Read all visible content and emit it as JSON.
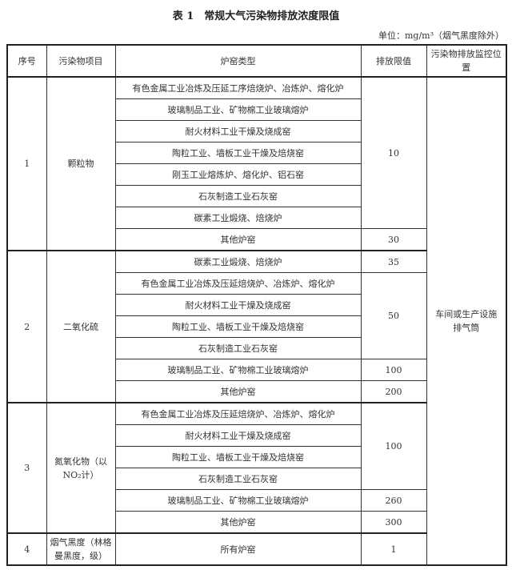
{
  "title": "表 1　常规大气污染物排放浓度限值",
  "unit": "单位：mg/m³（烟气黑度除外）",
  "headers": [
    "序号",
    "污染物项目",
    "炉窑类型",
    "排放限值",
    "污染物排放监控位置"
  ],
  "monitor_location": "车间或生产设施排气筒",
  "sections": [
    {
      "no": "1",
      "pollutant": "颗粒物",
      "rows": [
        {
          "furnace": "有色金属工业冶炼及压延工序焙烧炉、冶炼炉、熔化炉",
          "limit": "10",
          "span": 7
        },
        {
          "furnace": "玻璃制品工业、矿物棉工业玻璃熔炉"
        },
        {
          "furnace": "耐火材料工业干燥及烧成窑"
        },
        {
          "furnace": "陶粒工业、墙板工业干燥及焙烧窑"
        },
        {
          "furnace": "刚玉工业熔炼炉、熔化炉、铝石窑"
        },
        {
          "furnace": "石灰制造工业石灰窑"
        },
        {
          "furnace": "碳素工业煅烧、焙烧炉"
        },
        {
          "furnace": "其他炉窑",
          "limit": "30",
          "span": 1
        }
      ]
    },
    {
      "no": "2",
      "pollutant": "二氧化硫",
      "rows": [
        {
          "furnace": "碳素工业煅烧、焙烧炉",
          "limit": "35",
          "span": 1
        },
        {
          "furnace": "有色金属工业冶炼及压延焙烧炉、冶炼炉、熔化炉",
          "limit": "50",
          "span": 4
        },
        {
          "furnace": "耐火材料工业干燥及烧成窑"
        },
        {
          "furnace": "陶粒工业、墙板工业干燥及焙烧窑"
        },
        {
          "furnace": "石灰制造工业石灰窑"
        },
        {
          "furnace": "玻璃制品工业、矿物棉工业玻璃熔炉",
          "limit": "100",
          "span": 1
        },
        {
          "furnace": "其他炉窑",
          "limit": "200",
          "span": 1
        }
      ]
    },
    {
      "no": "3",
      "pollutant": "氮氧化物（以NO₂计）",
      "rows": [
        {
          "furnace": "有色金属工业冶炼及压延焙烧炉、冶炼炉、熔化炉",
          "limit": "100",
          "span": 4
        },
        {
          "furnace": "耐火材料工业干燥及烧成窑"
        },
        {
          "furnace": "陶粒工业、墙板工业干燥及焙烧窑"
        },
        {
          "furnace": "石灰制造工业石灰窑"
        },
        {
          "furnace": "玻璃制品工业、矿物棉工业玻璃熔炉",
          "limit": "260",
          "span": 1
        },
        {
          "furnace": "其他炉窑",
          "limit": "300",
          "span": 1
        }
      ]
    },
    {
      "no": "4",
      "pollutant": "烟气黑度（林格曼黑度，级）",
      "rows": [
        {
          "furnace": "所有炉窑",
          "limit": "1",
          "span": 1
        }
      ]
    }
  ]
}
